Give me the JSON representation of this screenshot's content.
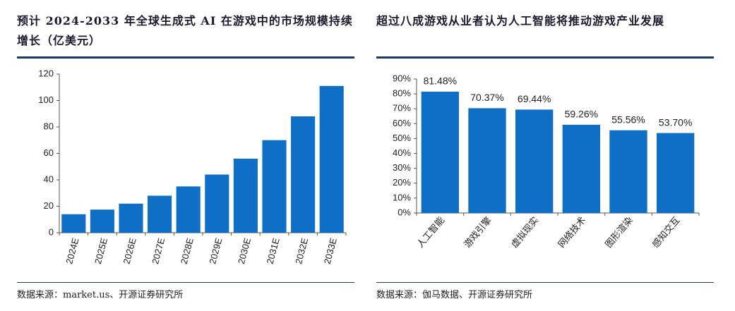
{
  "chart_data": [
    {
      "type": "bar",
      "title": "预计 2024-2033 年全球生成式 AI 在游戏中的市场规模持续增长（亿美元）",
      "categories": [
        "2024E",
        "2025E",
        "2026E",
        "2027E",
        "2028E",
        "2029E",
        "2030E",
        "2031E",
        "2032E",
        "2033E"
      ],
      "values": [
        14,
        17.5,
        22,
        28,
        35,
        44,
        56,
        70,
        88,
        111
      ],
      "color": "#0f6fc6",
      "ylim": [
        0,
        120
      ],
      "yticks": [
        0,
        20,
        40,
        60,
        80,
        100,
        120
      ],
      "source": "数据来源：market.us、开源证券研究所"
    },
    {
      "type": "bar",
      "title": "超过八成游戏从业者认为人工智能将推动游戏产业发展",
      "categories": [
        "人工智能",
        "游戏引擎",
        "虚拟现实",
        "网络技术",
        "图形渲染",
        "感知交互"
      ],
      "values": [
        81.48,
        70.37,
        69.44,
        59.26,
        55.56,
        53.7
      ],
      "value_labels": [
        "81.48%",
        "70.37%",
        "69.44%",
        "59.26%",
        "55.56%",
        "53.70%"
      ],
      "color": "#0f6fc6",
      "ylim": [
        0,
        90
      ],
      "yticks": [
        {
          "value": 0,
          "label": "0%"
        },
        {
          "value": 10,
          "label": "10%"
        },
        {
          "value": 20,
          "label": "20%"
        },
        {
          "value": 30,
          "label": "30%"
        },
        {
          "value": 40,
          "label": "40%"
        },
        {
          "value": 50,
          "label": "50%"
        },
        {
          "value": 60,
          "label": "60%"
        },
        {
          "value": 70,
          "label": "70%"
        },
        {
          "value": 80,
          "label": "80%"
        },
        {
          "value": 90,
          "label": "90%"
        }
      ],
      "source": "数据来源：伽马数据、开源证券研究所"
    }
  ]
}
